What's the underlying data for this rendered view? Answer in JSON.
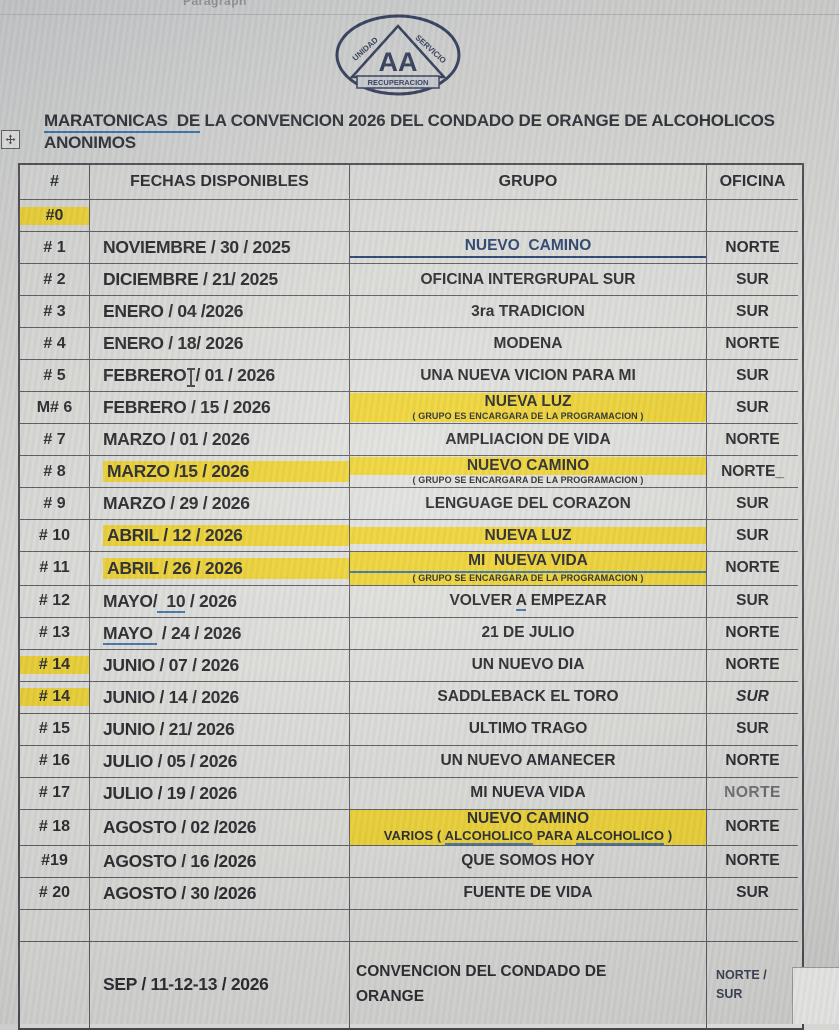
{
  "toolbar": {
    "label": "Paragraph"
  },
  "logo": {
    "center": "AA",
    "banner": "RECUPERACION",
    "left_word": "UNIDAD",
    "right_word": "SERVICIO"
  },
  "title": {
    "underlined": "MARATONICAS  DE",
    "rest": " LA CONVENCION 2026 DEL CONDADO DE ORANGE DE ALCOHOLICOS",
    "line2": "ANONIMOS"
  },
  "colors": {
    "highlight": "#efd32b",
    "link_navy": "#1d3a69",
    "underline_blue": "#2f6db0"
  },
  "table": {
    "headers": [
      "#",
      "FECHAS DISPONIBLES",
      "GRUPO",
      "OFICINA"
    ],
    "rows": [
      {
        "num": {
          "text": "#0",
          "hl": true
        },
        "fecha": {},
        "grupo": {},
        "oficina": {}
      },
      {
        "num": {
          "text": "# 1"
        },
        "fecha": {
          "text": "NOVIEMBRE / 30 / 2025"
        },
        "grupo": {
          "text": "NUEVO  CAMINO",
          "navy": true
        },
        "oficina": {
          "text": "NORTE"
        }
      },
      {
        "num": {
          "text": "# 2"
        },
        "fecha": {
          "text": "DICIEMBRE / 21/ 2025"
        },
        "grupo": {
          "text": "OFICINA INTERGRUPAL SUR"
        },
        "oficina": {
          "text": "SUR"
        }
      },
      {
        "num": {
          "text": "# 3"
        },
        "fecha": {
          "text": "ENERO / 04 /2026"
        },
        "grupo": {
          "text": "3ra TRADICION"
        },
        "oficina": {
          "text": "SUR"
        }
      },
      {
        "num": {
          "text": "# 4"
        },
        "fecha": {
          "text": "ENERO / 18/ 2026"
        },
        "grupo": {
          "text": "MODENA"
        },
        "oficina": {
          "text": "NORTE"
        }
      },
      {
        "num": {
          "text": "# 5"
        },
        "fecha": {
          "parts": [
            {
              "t": "FEBRERO"
            },
            {
              "caret": true
            },
            {
              "t": "/ 01 / 2026"
            }
          ]
        },
        "grupo": {
          "text": "UNA NUEVA VICION PARA MI"
        },
        "oficina": {
          "text": "SUR"
        }
      },
      {
        "num": {
          "text": "M# 6"
        },
        "fecha": {
          "text": "FEBRERO / 15 / 2026"
        },
        "grupo": {
          "text": "NUEVA LUZ",
          "hl": true,
          "sub": {
            "text": "( GRUPO ES ENCARGARA DE LA PROGRAMACION )",
            "hl": true
          }
        },
        "oficina": {
          "text": "SUR"
        }
      },
      {
        "num": {
          "text": "# 7"
        },
        "fecha": {
          "text": "MARZO / 01 / 2026"
        },
        "grupo": {
          "text": "AMPLIACION DE VIDA"
        },
        "oficina": {
          "text": "NORTE"
        }
      },
      {
        "num": {
          "text": "# 8"
        },
        "fecha": {
          "text": "MARZO /15 / 2026",
          "hl": true
        },
        "grupo": {
          "text": "NUEVO CAMINO",
          "hl": true,
          "sub": {
            "text": "( GRUPO SE ENCARGARA DE LA PROGRAMACION )"
          }
        },
        "oficina": {
          "text": "NORTE_"
        }
      },
      {
        "num": {
          "text": "# 9"
        },
        "fecha": {
          "text": "MARZO / 29 / 2026"
        },
        "grupo": {
          "text": "LENGUAGE DEL CORAZON"
        },
        "oficina": {
          "text": "SUR"
        }
      },
      {
        "num": {
          "text": "# 10"
        },
        "fecha": {
          "text": "ABRIL / 12 / 2026",
          "hl": true
        },
        "grupo": {
          "text": "NUEVA LUZ",
          "hl": true
        },
        "oficina": {
          "text": "SUR"
        }
      },
      {
        "num": {
          "text": "# 11"
        },
        "fecha": {
          "text": "ABRIL / 26 / 2026",
          "hl": true
        },
        "grupo": {
          "text": "MI  NUEVA VIDA",
          "hl": true,
          "u": true,
          "sub": {
            "text": "( GRUPO SE ENCARGARA DE LA PROGRAMACION )",
            "hl": true
          }
        },
        "oficina": {
          "text": "NORTE"
        }
      },
      {
        "num": {
          "text": "# 12"
        },
        "fecha": {
          "parts": [
            {
              "t": "MAYO/"
            },
            {
              "t": "  10",
              "u": true
            },
            {
              "t": " / 2026"
            }
          ]
        },
        "grupo": {
          "parts": [
            {
              "t": "VOLVER "
            },
            {
              "t": "A",
              "u": true
            },
            {
              "t": " EMPEZAR"
            }
          ]
        },
        "oficina": {
          "text": "SUR"
        }
      },
      {
        "num": {
          "text": "# 13"
        },
        "fecha": {
          "parts": [
            {
              "t": "MAYO ",
              "u": true
            },
            {
              "t": " / 24 / 2026"
            }
          ]
        },
        "grupo": {
          "text": "21 DE JULIO"
        },
        "oficina": {
          "text": "NORTE"
        }
      },
      {
        "num": {
          "text": "# 14",
          "hl": true
        },
        "fecha": {
          "text": "JUNIO / 07 / 2026"
        },
        "grupo": {
          "text": "UN NUEVO DIA"
        },
        "oficina": {
          "text": "NORTE"
        }
      },
      {
        "num": {
          "text": "# 14",
          "hl": true
        },
        "fecha": {
          "text": "JUNIO / 14 / 2026"
        },
        "grupo": {
          "text": "SADDLEBACK EL TORO"
        },
        "oficina": {
          "text": "SUR",
          "italic": true
        }
      },
      {
        "num": {
          "text": "# 15"
        },
        "fecha": {
          "text": "JUNIO / 21/ 2026"
        },
        "grupo": {
          "text": "ULTIMO TRAGO"
        },
        "oficina": {
          "text": "SUR"
        }
      },
      {
        "num": {
          "text": "# 16"
        },
        "fecha": {
          "text": "JULIO / 05 / 2026"
        },
        "grupo": {
          "text": "UN NUEVO AMANECER"
        },
        "oficina": {
          "text": "NORTE"
        }
      },
      {
        "num": {
          "text": "# 17"
        },
        "fecha": {
          "text": "JULIO / 19 / 2026"
        },
        "grupo": {
          "text": "MI NUEVA VIDA"
        },
        "oficina": {
          "text": "NORTE",
          "light": true
        }
      },
      {
        "num": {
          "text": "# 18"
        },
        "fecha": {
          "text": "AGOSTO / 02 /2026"
        },
        "grupo": {
          "text": "NUEVO CAMINO",
          "hl": true,
          "sub": {
            "parts": [
              {
                "t": "VARIOS ( "
              },
              {
                "t": "ALCOHOLICO",
                "u": true
              },
              {
                "t": " PARA "
              },
              {
                "t": "ALCOHOLICO",
                "u": true
              },
              {
                "t": " )"
              }
            ],
            "hl": true,
            "big": true
          }
        },
        "oficina": {
          "text": "NORTE"
        }
      },
      {
        "num": {
          "text": "#19"
        },
        "fecha": {
          "text": "AGOSTO / 16 /2026"
        },
        "grupo": {
          "text": "QUE SOMOS HOY"
        },
        "oficina": {
          "text": "NORTE"
        }
      },
      {
        "num": {
          "text": "# 20"
        },
        "fecha": {
          "text": "AGOSTO / 30 /2026"
        },
        "grupo": {
          "text": "FUENTE DE VIDA"
        },
        "oficina": {
          "text": "SUR"
        }
      },
      {
        "num": {},
        "fecha": {},
        "grupo": {},
        "oficina": {}
      },
      {
        "num": {},
        "fecha": {
          "text": "SEP / 11-12-13 / 2026"
        },
        "grupo": {
          "text": "CONVENCION DEL CONDADO DE\nORANGE",
          "left": true
        },
        "oficina": {
          "text": "NORTE /\nSUR",
          "small": true
        },
        "final": true
      }
    ]
  }
}
